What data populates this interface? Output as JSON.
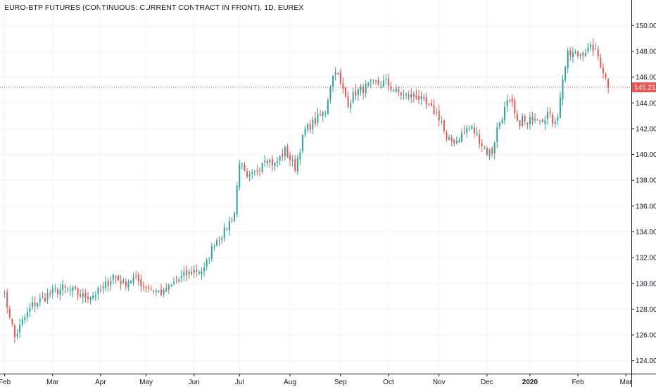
{
  "chart_data": {
    "type": "candlestick",
    "title": "EURO-BTP FUTURES (CONTINUOUS: CURRENT CONTRACT IN FRONT), 1D, EUREX",
    "ylim": [
      123,
      151
    ],
    "yticks": [
      "124.00",
      "126.00",
      "128.00",
      "130.00",
      "132.00",
      "134.00",
      "136.00",
      "138.00",
      "140.00",
      "142.00",
      "144.00",
      "146.00",
      "148.00",
      "150.00"
    ],
    "xticks": [
      {
        "label": "Feb",
        "day": 1,
        "bold": false
      },
      {
        "label": "Mar",
        "day": 20,
        "bold": false
      },
      {
        "label": "Apr",
        "day": 39,
        "bold": false
      },
      {
        "label": "May",
        "day": 57,
        "bold": false
      },
      {
        "label": "Jun",
        "day": 76,
        "bold": false
      },
      {
        "label": "Jul",
        "day": 94,
        "bold": false
      },
      {
        "label": "Aug",
        "day": 114,
        "bold": false
      },
      {
        "label": "Sep",
        "day": 134,
        "bold": false
      },
      {
        "label": "Oct",
        "day": 153,
        "bold": false
      },
      {
        "label": "Nov",
        "day": 173,
        "bold": false
      },
      {
        "label": "Dec",
        "day": 192,
        "bold": false
      },
      {
        "label": "2020",
        "day": 209,
        "bold": true
      },
      {
        "label": "Feb",
        "day": 228,
        "bold": false
      },
      {
        "label": "Mar",
        "day": 247,
        "bold": false
      }
    ],
    "last_price": {
      "label": "145.21",
      "value": 145.21
    },
    "grid": true,
    "colors": {
      "up": "#26a69a",
      "down": "#ef5350",
      "grid": "#f0f3fa",
      "axis": "#131722",
      "last_price": "#ef5350"
    },
    "close_anchors": [
      [
        0,
        129.7
      ],
      [
        3,
        127.6
      ],
      [
        5,
        125.8
      ],
      [
        8,
        127.0
      ],
      [
        12,
        128.3
      ],
      [
        16,
        128.8
      ],
      [
        20,
        129.3
      ],
      [
        24,
        129.6
      ],
      [
        28,
        129.4
      ],
      [
        32,
        129.0
      ],
      [
        36,
        129.1
      ],
      [
        40,
        129.6
      ],
      [
        44,
        130.6
      ],
      [
        48,
        130.0
      ],
      [
        52,
        130.4
      ],
      [
        56,
        129.9
      ],
      [
        60,
        129.5
      ],
      [
        64,
        129.2
      ],
      [
        68,
        130.0
      ],
      [
        72,
        130.6
      ],
      [
        76,
        131.0
      ],
      [
        80,
        131.0
      ],
      [
        84,
        133.2
      ],
      [
        88,
        134.0
      ],
      [
        92,
        135.5
      ],
      [
        94,
        139.5
      ],
      [
        97,
        138.0
      ],
      [
        100,
        138.5
      ],
      [
        104,
        139.8
      ],
      [
        108,
        139.2
      ],
      [
        112,
        140.3
      ],
      [
        116,
        139.0
      ],
      [
        118,
        140.5
      ],
      [
        120,
        141.9
      ],
      [
        124,
        142.6
      ],
      [
        128,
        143.4
      ],
      [
        130,
        145.4
      ],
      [
        132,
        146.7
      ],
      [
        134,
        145.4
      ],
      [
        137,
        144.0
      ],
      [
        140,
        144.8
      ],
      [
        144,
        145.2
      ],
      [
        148,
        145.5
      ],
      [
        152,
        145.6
      ],
      [
        156,
        144.9
      ],
      [
        160,
        144.5
      ],
      [
        164,
        144.6
      ],
      [
        168,
        143.8
      ],
      [
        172,
        143.2
      ],
      [
        174,
        142.6
      ],
      [
        176,
        141.0
      ],
      [
        180,
        141.1
      ],
      [
        184,
        142.0
      ],
      [
        186,
        142.0
      ],
      [
        188,
        141.5
      ],
      [
        190,
        140.8
      ],
      [
        192,
        140.2
      ],
      [
        194,
        140.2
      ],
      [
        196,
        142.0
      ],
      [
        198,
        143.0
      ],
      [
        200,
        144.0
      ],
      [
        202,
        143.8
      ],
      [
        204,
        142.3
      ],
      [
        206,
        142.8
      ],
      [
        208,
        142.2
      ],
      [
        210,
        143.0
      ],
      [
        212,
        143.0
      ],
      [
        214,
        142.8
      ],
      [
        216,
        143.2
      ],
      [
        218,
        142.6
      ],
      [
        220,
        143.1
      ],
      [
        221,
        144.3
      ],
      [
        222,
        146.0
      ],
      [
        224,
        147.7
      ],
      [
        226,
        147.8
      ],
      [
        228,
        147.7
      ],
      [
        230,
        148.0
      ],
      [
        232,
        148.1
      ],
      [
        234,
        148.3
      ],
      [
        236,
        147.6
      ],
      [
        238,
        146.5
      ],
      [
        240,
        145.2
      ]
    ]
  }
}
